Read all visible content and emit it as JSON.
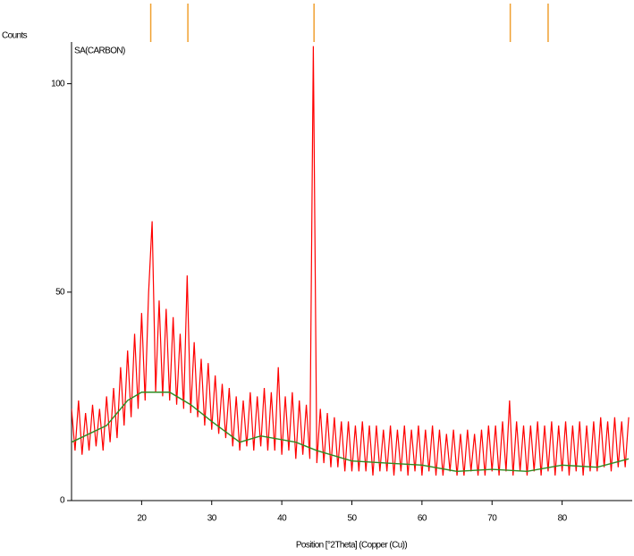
{
  "chart_data": {
    "type": "line",
    "title": "SA(CARBON)",
    "y_label": "Counts",
    "x_label": "Position [°2Theta] (Copper (Cu))",
    "xlim": [
      10,
      90
    ],
    "ylim": [
      0,
      110
    ],
    "xticks": [
      20,
      30,
      40,
      50,
      60,
      70,
      80
    ],
    "yticks": [
      0,
      50,
      100
    ],
    "reference_peaks": {
      "color": "#f0a030",
      "x": [
        21.3,
        26.6,
        44.6,
        72.6,
        78.0
      ]
    },
    "series": [
      {
        "name": "SA(CARBON)",
        "color": "#ff0000",
        "x": [
          10,
          10.5,
          11,
          11.5,
          12,
          12.5,
          13,
          13.5,
          14,
          14.5,
          15,
          15.5,
          16,
          16.5,
          17,
          17.5,
          18,
          18.5,
          19,
          19.5,
          20,
          20.5,
          21,
          21.5,
          22,
          22.5,
          23,
          23.5,
          24,
          24.5,
          25,
          25.5,
          26,
          26.5,
          27,
          27.5,
          28,
          28.5,
          29,
          29.5,
          30,
          30.5,
          31,
          31.5,
          32,
          32.5,
          33,
          33.5,
          34,
          34.5,
          35,
          35.5,
          36,
          36.5,
          37,
          37.5,
          38,
          38.5,
          39,
          39.5,
          40,
          40.5,
          41,
          41.5,
          42,
          42.5,
          43,
          43.5,
          44,
          44.5,
          45,
          45.5,
          46,
          46.5,
          47,
          47.5,
          48,
          48.5,
          49,
          49.5,
          50,
          50.5,
          51,
          51.5,
          52,
          52.5,
          53,
          53.5,
          54,
          54.5,
          55,
          55.5,
          56,
          56.5,
          57,
          57.5,
          58,
          58.5,
          59,
          59.5,
          60,
          60.5,
          61,
          61.5,
          62,
          62.5,
          63,
          63.5,
          64,
          64.5,
          65,
          65.5,
          66,
          66.5,
          67,
          67.5,
          68,
          68.5,
          69,
          69.5,
          70,
          70.5,
          71,
          71.5,
          72,
          72.5,
          73,
          73.5,
          74,
          74.5,
          75,
          75.5,
          76,
          76.5,
          77,
          77.5,
          78,
          78.5,
          79,
          79.5,
          80,
          80.5,
          81,
          81.5,
          82,
          82.5,
          83,
          83.5,
          84,
          84.5,
          85,
          85.5,
          86,
          86.5,
          87,
          87.5,
          88,
          88.5,
          89,
          89.5
        ],
        "values": [
          22,
          12,
          24,
          11,
          21,
          12,
          23,
          13,
          22,
          12,
          25,
          14,
          27,
          15,
          32,
          18,
          36,
          20,
          40,
          22,
          45,
          24,
          50,
          67,
          26,
          48,
          25,
          46,
          24,
          44,
          23,
          40,
          22,
          54,
          21,
          38,
          20,
          34,
          18,
          33,
          17,
          30,
          16,
          28,
          15,
          27,
          13,
          25,
          12,
          24,
          13,
          26,
          12,
          25,
          13,
          27,
          12,
          26,
          12,
          32,
          11,
          25,
          12,
          26,
          10,
          24,
          11,
          23,
          10,
          109,
          9,
          22,
          9,
          21,
          8,
          20,
          8,
          19,
          7,
          19,
          7,
          18,
          7,
          19,
          7,
          18,
          6,
          18,
          7,
          17,
          7,
          18,
          6,
          17,
          7,
          18,
          6,
          17,
          7,
          18,
          6,
          17,
          7,
          18,
          6,
          17,
          6,
          16,
          7,
          17,
          6,
          16,
          6,
          17,
          7,
          16,
          6,
          17,
          6,
          18,
          7,
          18,
          6,
          19,
          7,
          24,
          6,
          19,
          7,
          18,
          6,
          18,
          7,
          19,
          6,
          18,
          7,
          19,
          6,
          18,
          7,
          19,
          6,
          18,
          7,
          19,
          6,
          18,
          7,
          19,
          7,
          20,
          8,
          19,
          7,
          20,
          8,
          19,
          8,
          20
        ]
      },
      {
        "color": "#2e8b22",
        "x": [
          10,
          15,
          18,
          20,
          24,
          27,
          30,
          34,
          37,
          42,
          45,
          50,
          55,
          60,
          65,
          70,
          75,
          80,
          85,
          89.5
        ],
        "values": [
          14,
          18,
          24,
          26,
          26,
          23,
          19,
          14,
          15.5,
          14,
          12,
          9.5,
          9,
          8.5,
          7,
          7.5,
          7,
          8.5,
          8,
          10
        ]
      }
    ]
  }
}
